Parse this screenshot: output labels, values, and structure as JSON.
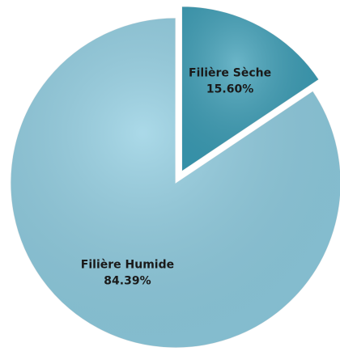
{
  "chart_data": {
    "type": "pie",
    "categories": [
      "Filière Sèche",
      "Filière Humide"
    ],
    "values": [
      15.6,
      84.39
    ],
    "value_labels": [
      "15.60%",
      "84.39%"
    ],
    "colors": [
      "#3a9db6",
      "#8fcde1"
    ],
    "exploded": [
      true,
      false
    ]
  }
}
